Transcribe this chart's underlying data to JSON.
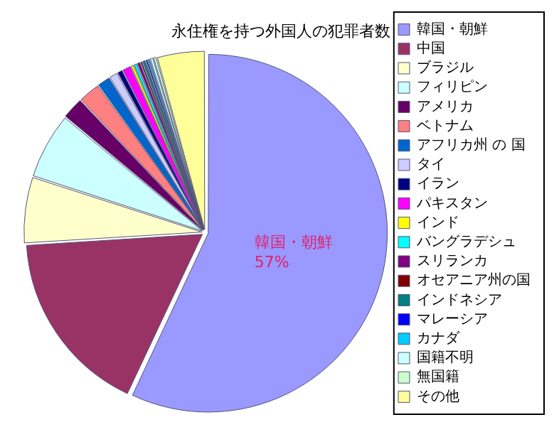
{
  "chart_data": {
    "type": "pie",
    "title": "永住権を持つ外国人の犯罪者数",
    "categories": [
      "韓国・朝鮮",
      "中国",
      "ブラジル",
      "フィリピン",
      "アメリカ",
      "ベトナム",
      "アフリカ州 の 国",
      "タイ",
      "イラン",
      "パキスタン",
      "インド",
      "バングラデシュ",
      "スリランカ",
      "オセアニア州の国",
      "インドネシア",
      "マレーシア",
      "カナダ",
      "国籍不明",
      "無国籍",
      "その他"
    ],
    "values": [
      57,
      17,
      6,
      6,
      2,
      2,
      1.2,
      0.8,
      0.5,
      0.8,
      0.3,
      0.3,
      0.3,
      0.2,
      0.3,
      0.2,
      0.2,
      0.3,
      0.3,
      4.3
    ],
    "colors": [
      "#9999ff",
      "#993366",
      "#ffffcc",
      "#ccffff",
      "#660066",
      "#ff8080",
      "#0066cc",
      "#ccccff",
      "#000080",
      "#ff00ff",
      "#ffff00",
      "#00ffff",
      "#800080",
      "#800000",
      "#008080",
      "#0000ff",
      "#00ccff",
      "#ccffff",
      "#ccffcc",
      "#ffff99"
    ],
    "value_labels": [
      "57%",
      null,
      null,
      null,
      null,
      null,
      null,
      null,
      null,
      null,
      null,
      null,
      null,
      null,
      null,
      null,
      null,
      null,
      null,
      null
    ],
    "legend": "right"
  }
}
